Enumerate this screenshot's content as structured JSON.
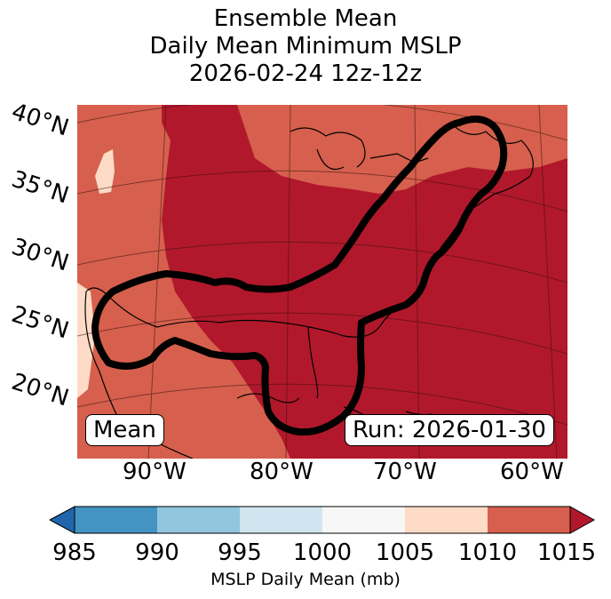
{
  "title": {
    "line1": "Ensemble Mean",
    "line2": "Daily Mean Minimum MSLP",
    "line3": "2026-02-24 12z-12z"
  },
  "map": {
    "lat_labels": [
      "40°N",
      "35°N",
      "30°N",
      "25°N",
      "20°N"
    ],
    "lon_labels": [
      "90°W",
      "80°W",
      "70°W",
      "60°W"
    ],
    "mean_tag": "Mean",
    "run_tag": "Run: 2026-01-30",
    "contour_color": "#000000"
  },
  "colorbar": {
    "ticks": [
      "985",
      "990",
      "995",
      "1000",
      "1005",
      "1010",
      "1015"
    ],
    "label": "MSLP Daily Mean (mb)",
    "colors": [
      "#4393c3",
      "#92c5de",
      "#d1e5f0",
      "#f7f7f7",
      "#fddbc7",
      "#d6604d"
    ],
    "under_color": "#2166ac",
    "over_color": "#b2182b"
  },
  "fill_colors": {
    "high": "#b2182b",
    "mid": "#d6604d",
    "low": "#fddbc7"
  }
}
